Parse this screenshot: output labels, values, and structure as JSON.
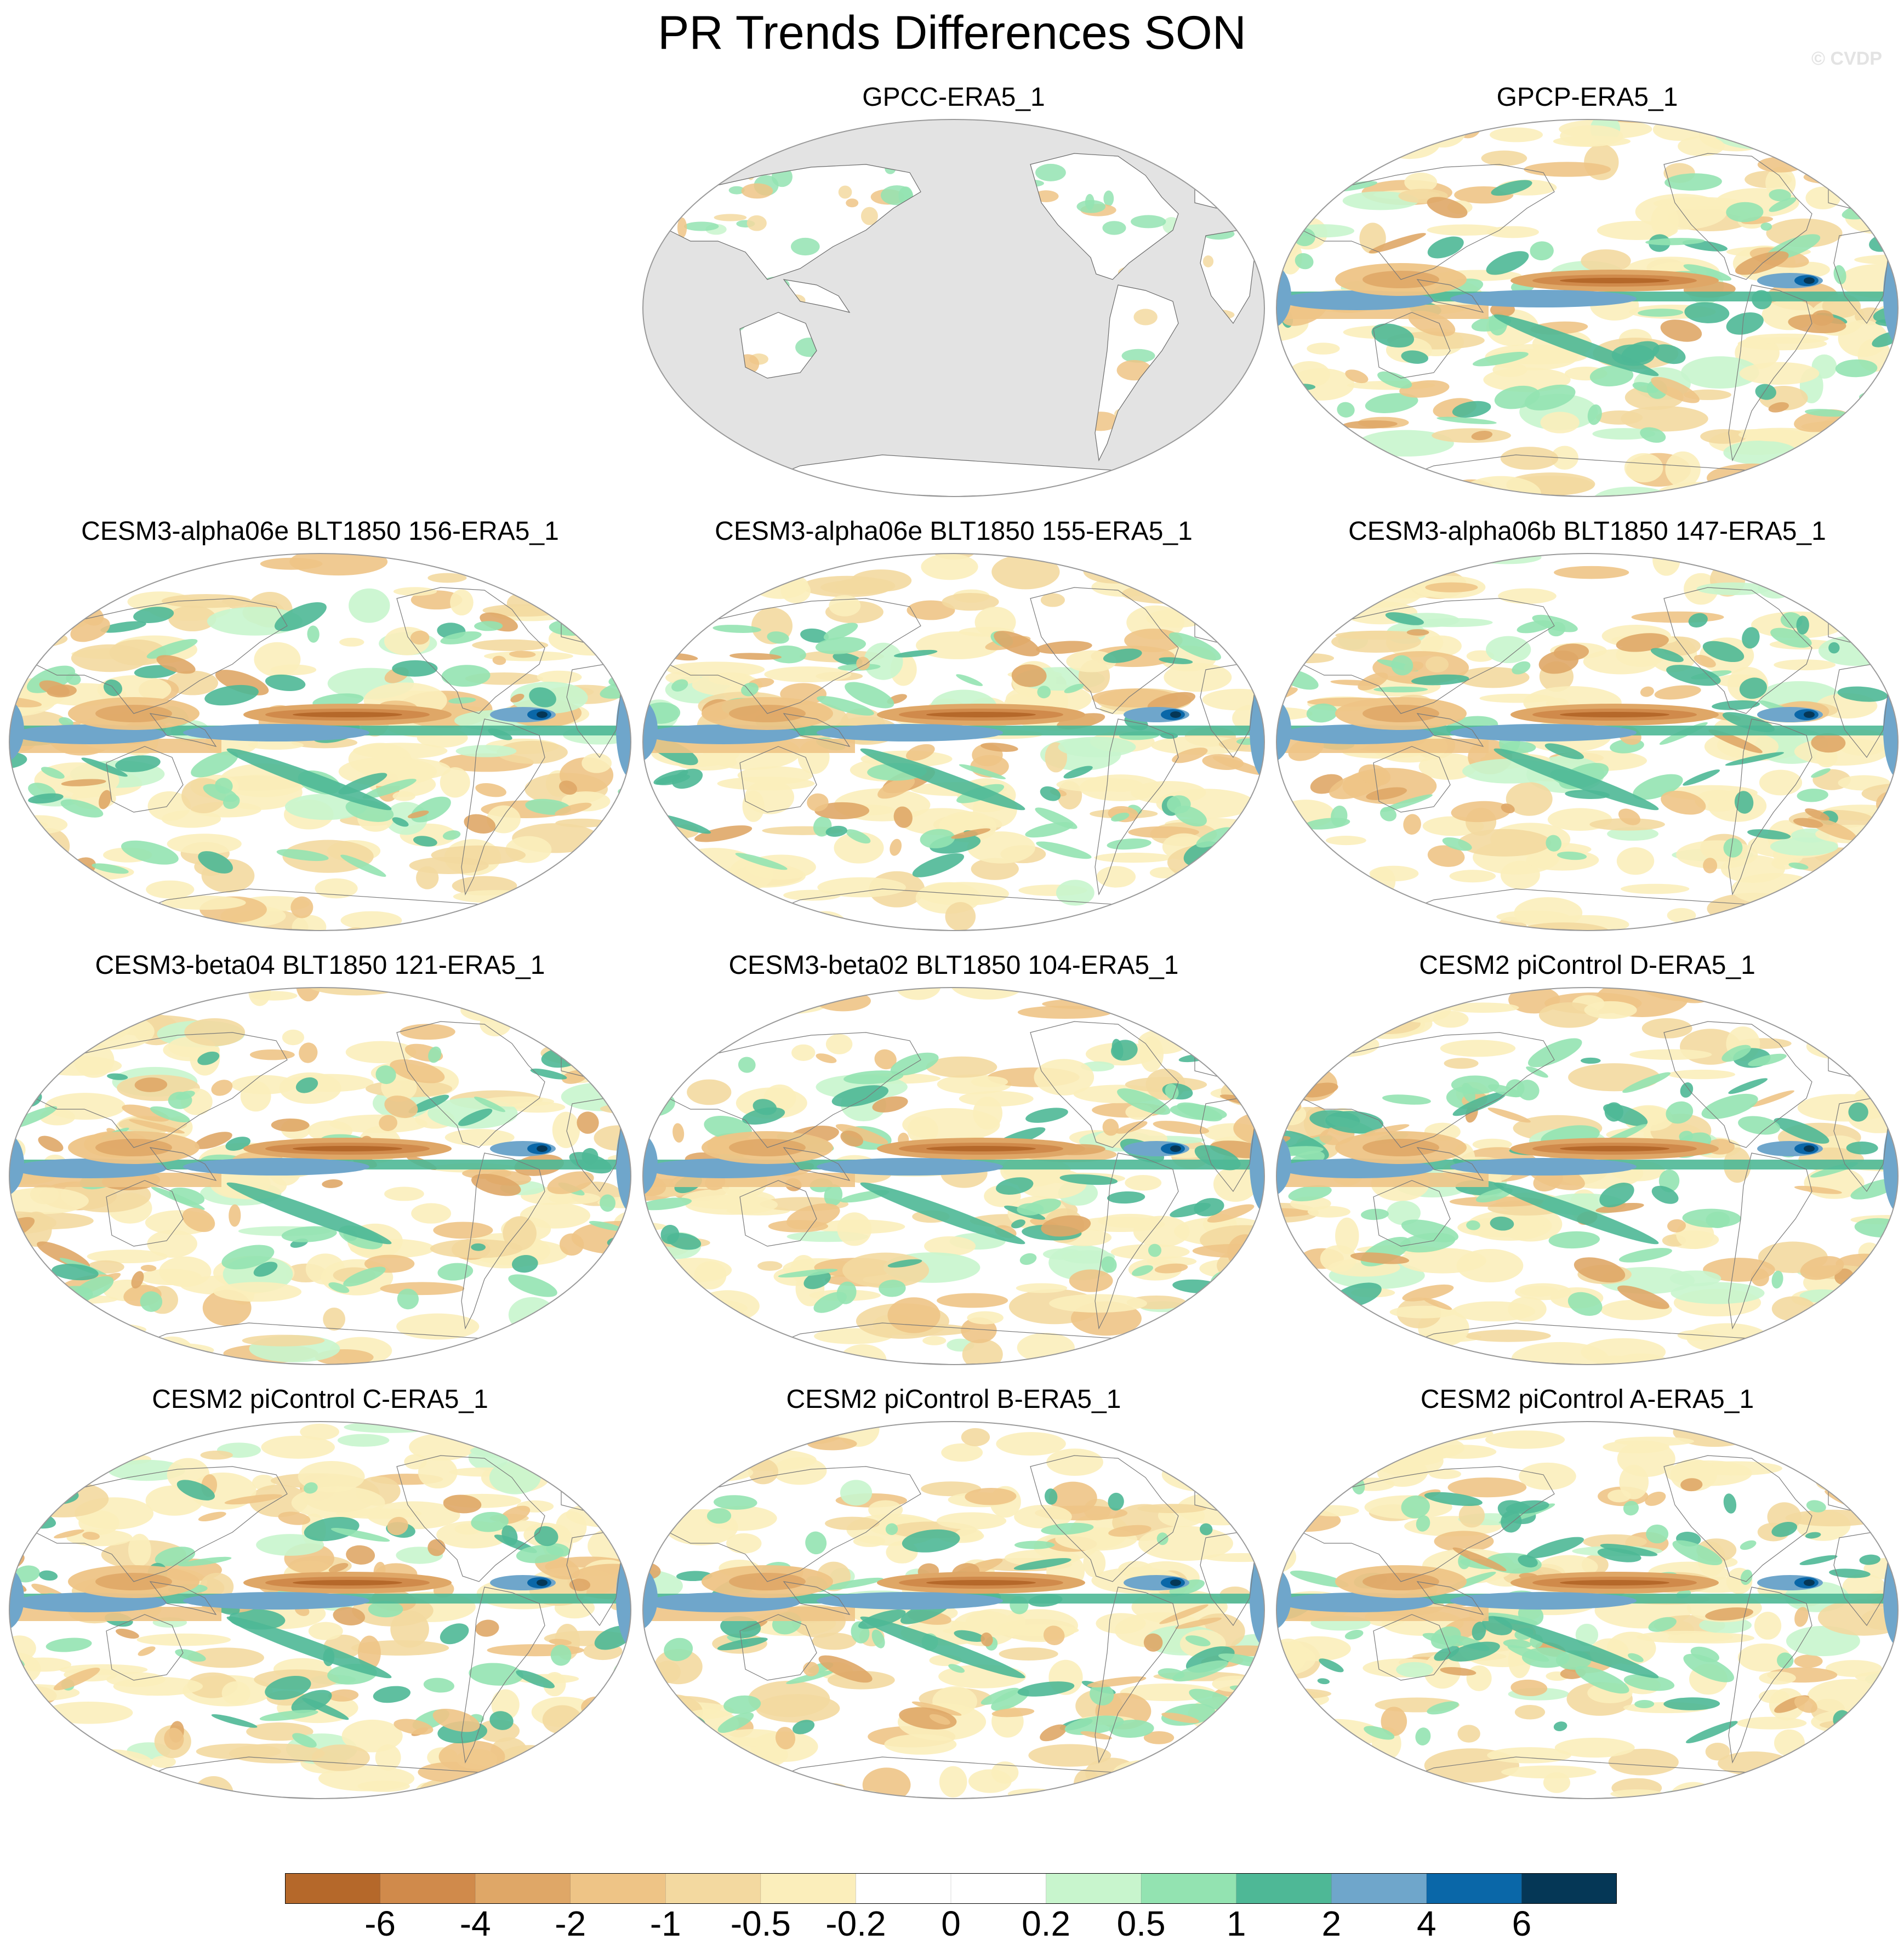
{
  "figure": {
    "title": "PR Trends Differences SON",
    "watermark": "© CVDP"
  },
  "panels": [
    {
      "id": "gpcc",
      "title": "GPCC-ERA5_1",
      "land_only": true
    },
    {
      "id": "gpcp",
      "title": "GPCP-ERA5_1",
      "land_only": false
    },
    {
      "id": "a156",
      "title": "CESM3-alpha06e BLT1850 156-ERA5_1",
      "land_only": false
    },
    {
      "id": "a155",
      "title": "CESM3-alpha06e BLT1850 155-ERA5_1",
      "land_only": false
    },
    {
      "id": "b147",
      "title": "CESM3-alpha06b BLT1850 147-ERA5_1",
      "land_only": false
    },
    {
      "id": "b121",
      "title": "CESM3-beta04 BLT1850 121-ERA5_1",
      "land_only": false
    },
    {
      "id": "b104",
      "title": "CESM3-beta02 BLT1850 104-ERA5_1",
      "land_only": false
    },
    {
      "id": "pd",
      "title": "CESM2 piControl D-ERA5_1",
      "land_only": false
    },
    {
      "id": "pc",
      "title": "CESM2 piControl C-ERA5_1",
      "land_only": false
    },
    {
      "id": "pb",
      "title": "CESM2 piControl B-ERA5_1",
      "land_only": false
    },
    {
      "id": "pa",
      "title": "CESM2 piControl A-ERA5_1",
      "land_only": false
    }
  ],
  "colorbar": {
    "levels": [
      "-6",
      "-4",
      "-2",
      "-1",
      "-0.5",
      "-0.2",
      "0",
      "0.2",
      "0.5",
      "1",
      "2",
      "4",
      "6"
    ],
    "colors": [
      "#b5682a",
      "#d08a4b",
      "#dfa767",
      "#eec486",
      "#f3d9a0",
      "#fbeebb",
      "#ffffff",
      "#ffffff",
      "#c8f5cd",
      "#93e3b1",
      "#4eb896",
      "#6fa6cb",
      "#0a67a8",
      "#053756"
    ],
    "land_mask_color": "#e3e3e3"
  }
}
